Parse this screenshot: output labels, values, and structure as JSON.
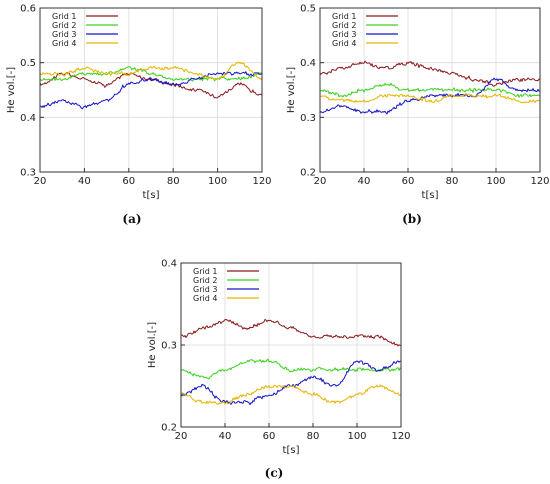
{
  "captions": [
    "(a)",
    "(b)",
    "(c)"
  ],
  "series_colors": [
    "#8b1a1a",
    "#3cd21e",
    "#1414c8",
    "#e6b400"
  ],
  "chart_data": [
    {
      "type": "line",
      "xlabel": "t[s]",
      "ylabel": "He vol.[-]",
      "xlim": [
        20,
        120
      ],
      "ylim": [
        0.3,
        0.6
      ],
      "xticks": [
        20,
        40,
        60,
        80,
        100,
        120
      ],
      "yticks": [
        0.3,
        0.4,
        0.5,
        0.6
      ],
      "grid": true,
      "legend": "top-left",
      "x": [
        20,
        30,
        40,
        50,
        60,
        70,
        80,
        90,
        100,
        110,
        120
      ],
      "series": [
        {
          "name": "Grid 1",
          "values": [
            0.46,
            0.48,
            0.47,
            0.46,
            0.48,
            0.47,
            0.46,
            0.45,
            0.44,
            0.46,
            0.44
          ]
        },
        {
          "name": "Grid 2",
          "values": [
            0.47,
            0.47,
            0.48,
            0.48,
            0.49,
            0.48,
            0.47,
            0.47,
            0.47,
            0.47,
            0.48
          ]
        },
        {
          "name": "Grid 3",
          "values": [
            0.42,
            0.43,
            0.42,
            0.43,
            0.46,
            0.47,
            0.46,
            0.47,
            0.48,
            0.48,
            0.48
          ]
        },
        {
          "name": "Grid 4",
          "values": [
            0.48,
            0.48,
            0.49,
            0.48,
            0.48,
            0.49,
            0.49,
            0.48,
            0.47,
            0.5,
            0.47
          ]
        }
      ]
    },
    {
      "type": "line",
      "xlabel": "t[s]",
      "ylabel": "He vol.[-]",
      "xlim": [
        20,
        120
      ],
      "ylim": [
        0.2,
        0.5
      ],
      "xticks": [
        20,
        40,
        60,
        80,
        100,
        120
      ],
      "yticks": [
        0.2,
        0.3,
        0.4,
        0.5
      ],
      "grid": true,
      "legend": "top-left",
      "x": [
        20,
        30,
        40,
        50,
        60,
        70,
        80,
        90,
        100,
        110,
        120
      ],
      "series": [
        {
          "name": "Grid 1",
          "values": [
            0.38,
            0.39,
            0.4,
            0.39,
            0.4,
            0.39,
            0.38,
            0.37,
            0.36,
            0.37,
            0.37
          ]
        },
        {
          "name": "Grid 2",
          "values": [
            0.35,
            0.34,
            0.35,
            0.36,
            0.35,
            0.35,
            0.35,
            0.35,
            0.35,
            0.34,
            0.34
          ]
        },
        {
          "name": "Grid 3",
          "values": [
            0.31,
            0.32,
            0.31,
            0.31,
            0.33,
            0.34,
            0.34,
            0.34,
            0.37,
            0.35,
            0.35
          ]
        },
        {
          "name": "Grid 4",
          "values": [
            0.34,
            0.33,
            0.33,
            0.34,
            0.34,
            0.33,
            0.34,
            0.34,
            0.34,
            0.33,
            0.33
          ]
        }
      ]
    },
    {
      "type": "line",
      "xlabel": "t[s]",
      "ylabel": "He vol.[-]",
      "xlim": [
        20,
        120
      ],
      "ylim": [
        0.2,
        0.4
      ],
      "xticks": [
        20,
        40,
        60,
        80,
        100,
        120
      ],
      "yticks": [
        0.2,
        0.3,
        0.4
      ],
      "grid": true,
      "legend": "top-left",
      "x": [
        20,
        30,
        40,
        50,
        60,
        70,
        80,
        90,
        100,
        110,
        120
      ],
      "series": [
        {
          "name": "Grid 1",
          "values": [
            0.31,
            0.32,
            0.33,
            0.32,
            0.33,
            0.32,
            0.31,
            0.31,
            0.31,
            0.31,
            0.3
          ]
        },
        {
          "name": "Grid 2",
          "values": [
            0.27,
            0.26,
            0.27,
            0.28,
            0.28,
            0.27,
            0.27,
            0.27,
            0.27,
            0.27,
            0.27
          ]
        },
        {
          "name": "Grid 3",
          "values": [
            0.24,
            0.25,
            0.23,
            0.23,
            0.24,
            0.25,
            0.26,
            0.25,
            0.28,
            0.27,
            0.28
          ]
        },
        {
          "name": "Grid 4",
          "values": [
            0.24,
            0.23,
            0.23,
            0.24,
            0.25,
            0.25,
            0.24,
            0.23,
            0.24,
            0.25,
            0.24
          ]
        }
      ]
    }
  ]
}
